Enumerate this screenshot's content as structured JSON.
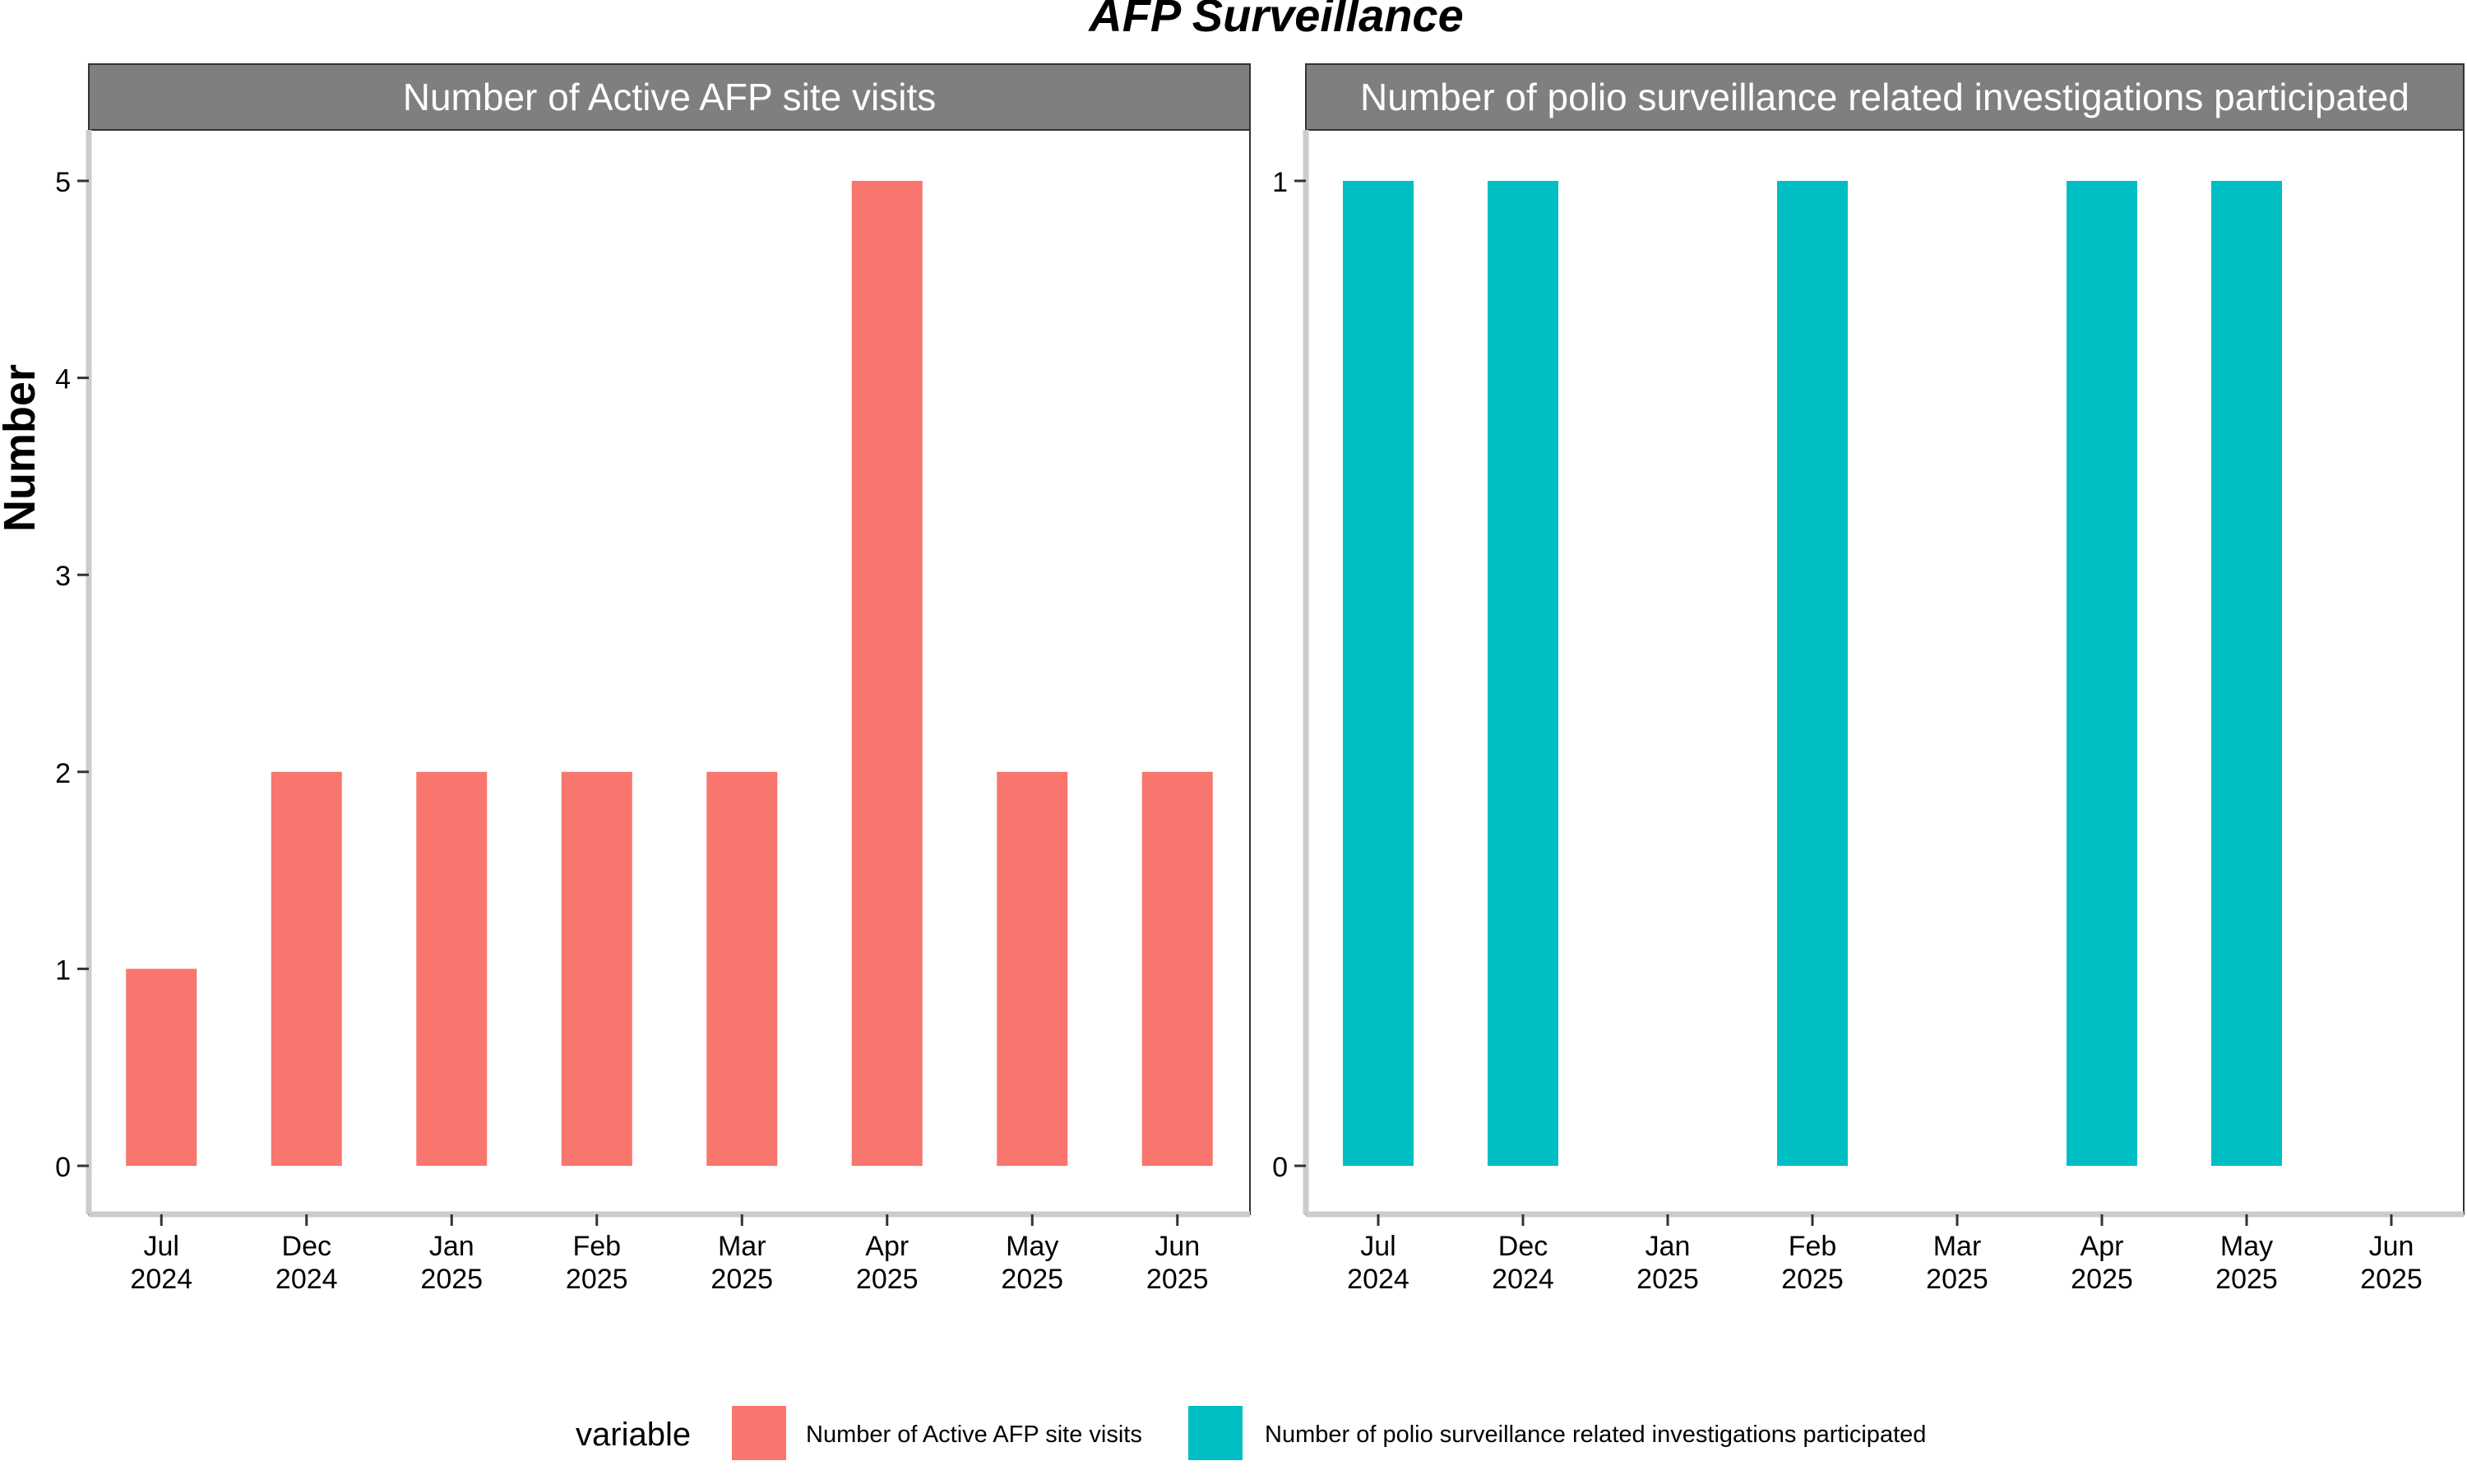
{
  "chart_data": {
    "type": "bar",
    "title": "AFP Surveillance",
    "ylabel": "Number",
    "categories": [
      "Jul\n2024",
      "Dec\n2024",
      "Jan\n2025",
      "Feb\n2025",
      "Mar\n2025",
      "Apr\n2025",
      "May\n2025",
      "Jun\n2025"
    ],
    "legend": {
      "title": "variable",
      "position": "bottom"
    },
    "panels": [
      {
        "strip_label": "Number of Active AFP site visits",
        "series_name": "Number of Active AFP site visits",
        "color": "#F8766D",
        "values": [
          1,
          2,
          2,
          2,
          2,
          5,
          2,
          2
        ],
        "ylim": [
          0,
          5
        ],
        "yticks": [
          0,
          1,
          2,
          3,
          4,
          5
        ]
      },
      {
        "strip_label": "Number of polio surveillance related investigations participated",
        "series_name": "Number of polio surveillance related investigations participated",
        "color": "#00BFC4",
        "values": [
          1,
          1,
          null,
          1,
          null,
          1,
          1,
          null
        ],
        "ylim": [
          0,
          1
        ],
        "yticks": [
          0,
          1
        ]
      }
    ],
    "grid": false
  }
}
